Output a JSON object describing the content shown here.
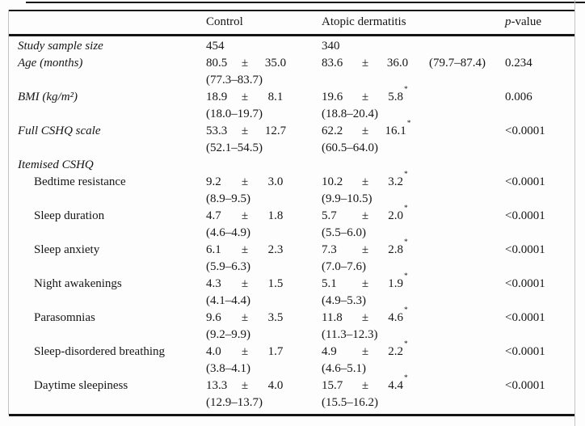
{
  "header": {
    "control": "Control",
    "atopic": "Atopic dermatitis",
    "p_italic": "p",
    "p_rest": "-value"
  },
  "rows": [
    {
      "label": "Study sample size",
      "control": {
        "mean": "454"
      },
      "atopic": {
        "mean": "340"
      }
    },
    {
      "label": "Age (months)",
      "control": {
        "mean": "80.5",
        "pm": "±",
        "sd": "35.0",
        "ci": "(77.3–83.7)"
      },
      "atopic": {
        "mean": "83.6",
        "pm": "±",
        "sd": "36.0",
        "ci_inline": "(79.7–87.4)"
      },
      "p": "0.234"
    },
    {
      "label": "BMI (kg/m²)",
      "control": {
        "mean": "18.9",
        "pm": "±",
        "sd": "8.1",
        "ci": "(18.0–19.7)"
      },
      "atopic": {
        "mean": "19.6",
        "pm": "±",
        "sd": "5.8",
        "star": "*",
        "ci": "(18.8–20.4)"
      },
      "p": "0.006"
    },
    {
      "label": "Full CSHQ scale",
      "control": {
        "mean": "53.3",
        "pm": "±",
        "sd": "12.7",
        "ci": "(52.1–54.5)"
      },
      "atopic": {
        "mean": "62.2",
        "pm": "±",
        "sd": "16.1",
        "star": "*",
        "ci": "(60.5–64.0)"
      },
      "p": "<0.0001"
    },
    {
      "label": "Itemised CSHQ"
    },
    {
      "label": "Bedtime resistance",
      "control": {
        "mean": "9.2",
        "pm": "±",
        "sd": "3.0",
        "ci": "(8.9–9.5)"
      },
      "atopic": {
        "mean": "10.2",
        "pm": "±",
        "sd": "3.2",
        "star": "*",
        "ci": "(9.9–10.5)"
      },
      "p": "<0.0001"
    },
    {
      "label": "Sleep duration",
      "control": {
        "mean": "4.7",
        "pm": "±",
        "sd": "1.8",
        "ci": "(4.6–4.9)"
      },
      "atopic": {
        "mean": "5.7",
        "pm": "±",
        "sd": "2.0",
        "star": "*",
        "ci": "(5.5–6.0)"
      },
      "p": "<0.0001"
    },
    {
      "label": "Sleep anxiety",
      "control": {
        "mean": "6.1",
        "pm": "±",
        "sd": "2.3",
        "ci": "(5.9–6.3)"
      },
      "atopic": {
        "mean": "7.3",
        "pm": "±",
        "sd": "2.8",
        "star": "*",
        "ci": "(7.0–7.6)"
      },
      "p": "<0.0001"
    },
    {
      "label": "Night awakenings",
      "control": {
        "mean": "4.3",
        "pm": "±",
        "sd": "1.5",
        "ci": "(4.1–4.4)"
      },
      "atopic": {
        "mean": "5.1",
        "pm": "±",
        "sd": "1.9",
        "star": "*",
        "ci": "(4.9–5.3)"
      },
      "p": "<0.0001"
    },
    {
      "label": "Parasomnias",
      "control": {
        "mean": "9.6",
        "pm": "±",
        "sd": "3.5",
        "ci": "(9.2–9.9)"
      },
      "atopic": {
        "mean": "11.8",
        "pm": "±",
        "sd": "4.6",
        "star": "*",
        "ci": "(11.3–12.3)"
      },
      "p": "<0.0001"
    },
    {
      "label": "Sleep-disordered breathing",
      "control": {
        "mean": "4.0",
        "pm": "±",
        "sd": "1.7",
        "ci": "(3.8–4.1)"
      },
      "atopic": {
        "mean": "4.9",
        "pm": "±",
        "sd": "2.2",
        "star": "*",
        "ci": "(4.6–5.1)"
      },
      "p": "<0.0001"
    },
    {
      "label": "Daytime sleepiness",
      "control": {
        "mean": "13.3",
        "pm": "±",
        "sd": "4.0",
        "ci": "(12.9–13.7)"
      },
      "atopic": {
        "mean": "15.7",
        "pm": "±",
        "sd": "4.4",
        "star": "*",
        "ci": "(15.5–16.2)"
      },
      "p": "<0.0001"
    }
  ]
}
